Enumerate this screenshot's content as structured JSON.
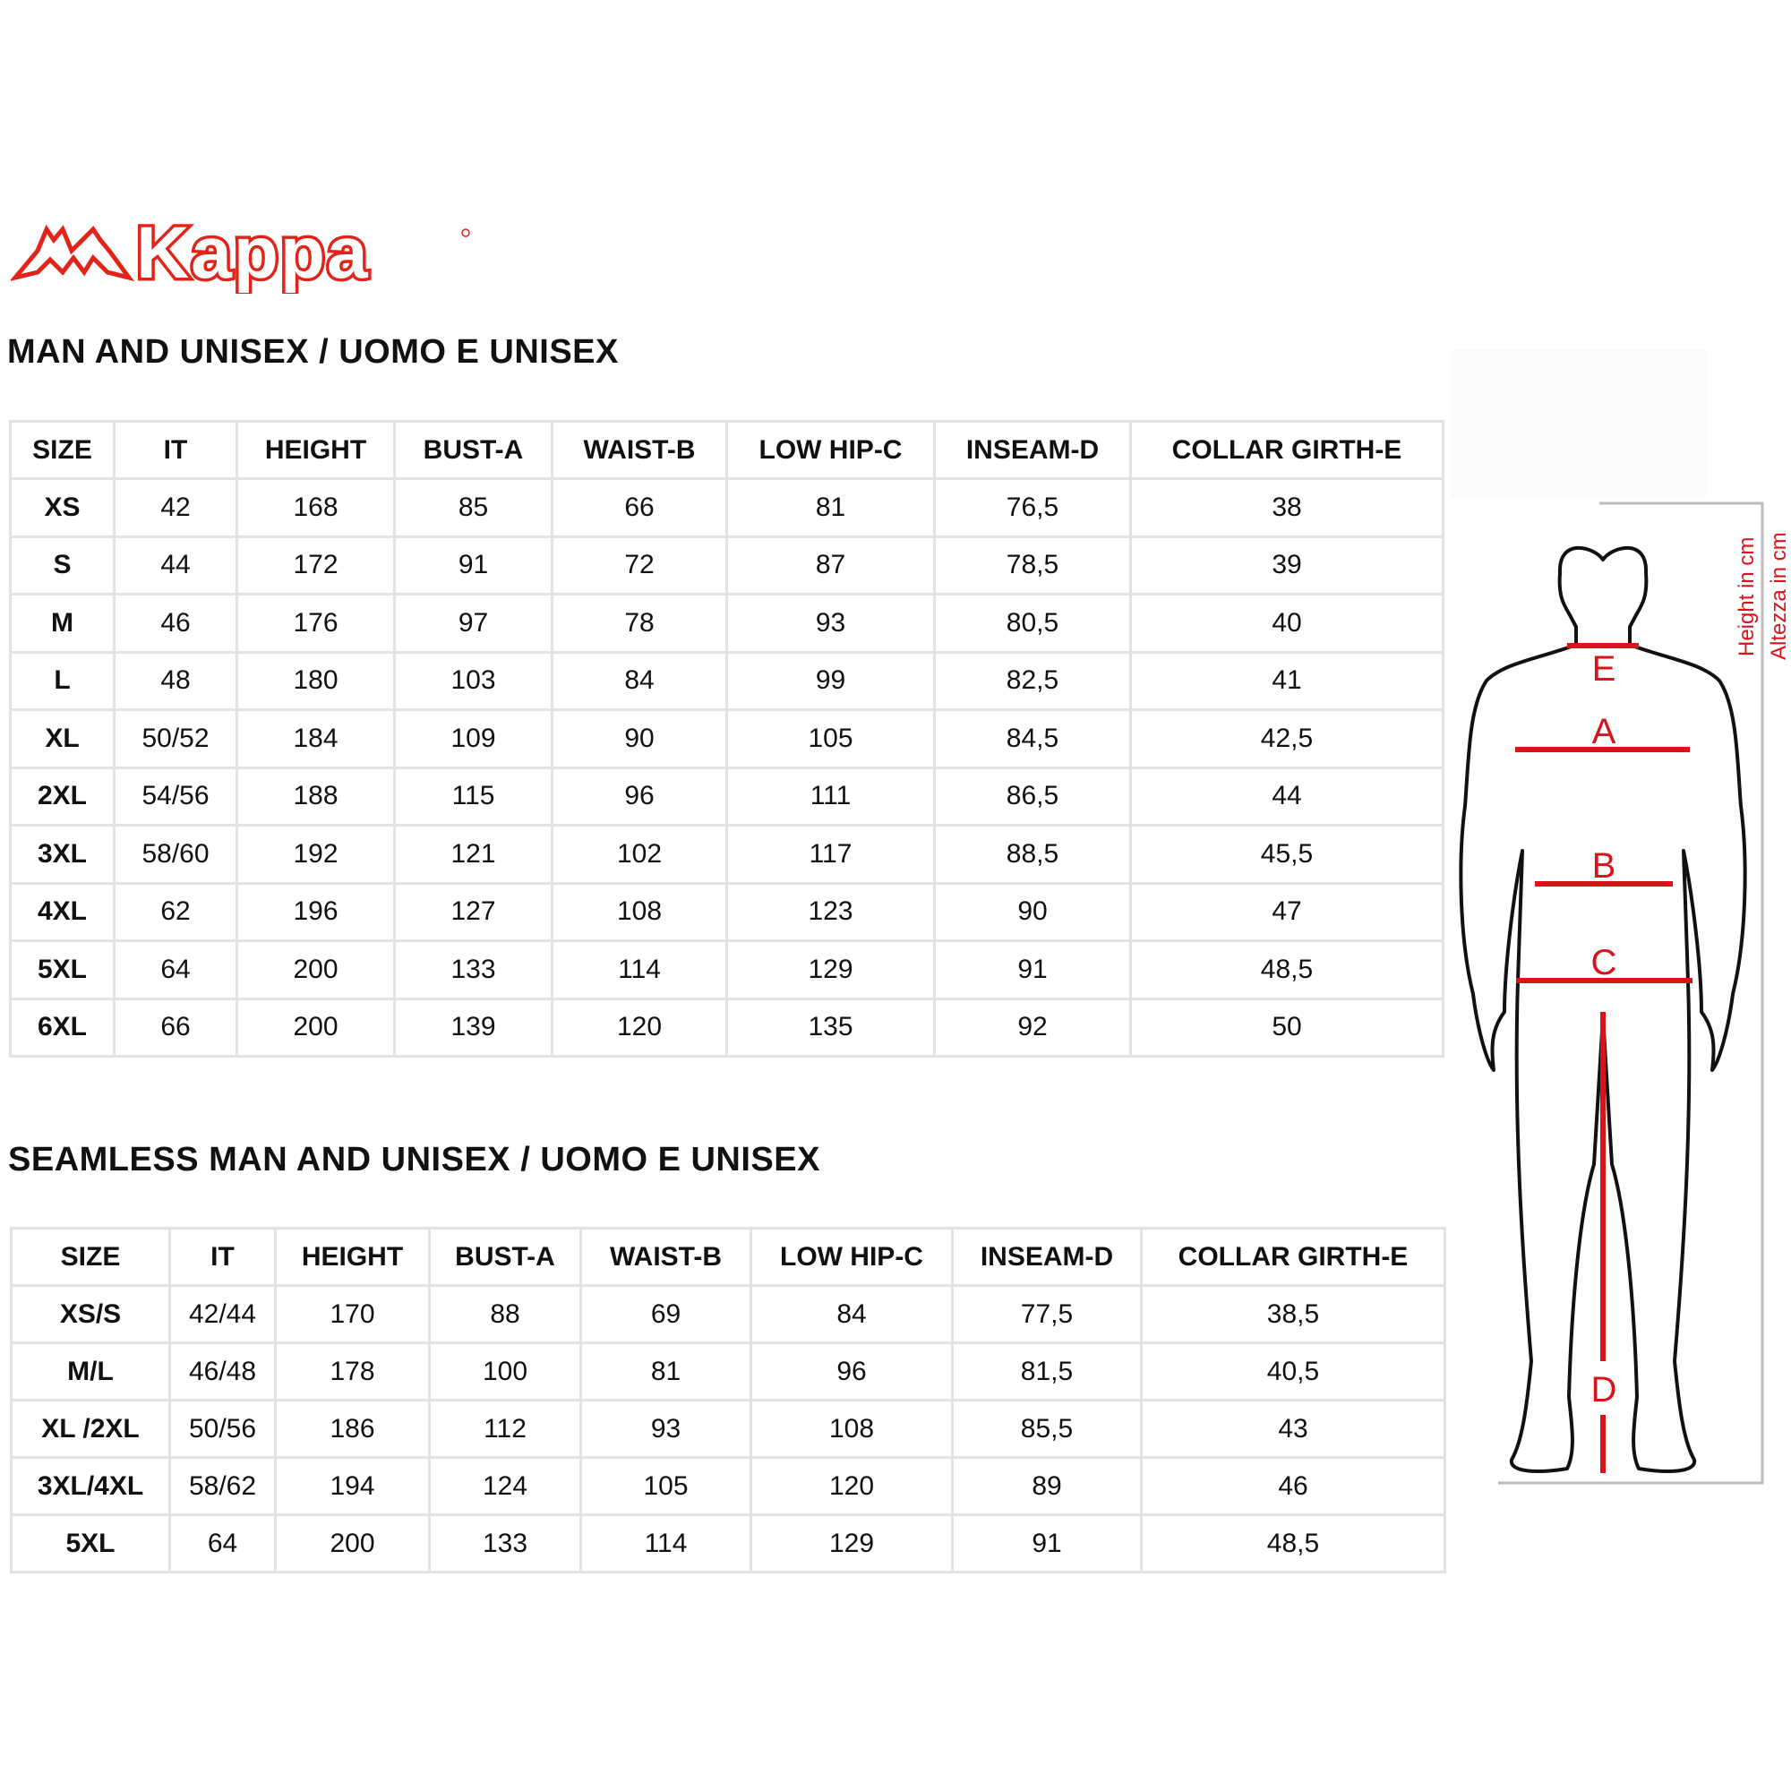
{
  "logo": {
    "text": "Kappa",
    "color": "#e2231a"
  },
  "table1": {
    "title": "MAN AND UNISEX / UOMO E UNISEX",
    "headers": [
      "SIZE",
      "IT",
      "HEIGHT",
      "BUST-A",
      "WAIST-B",
      "LOW HIP-C",
      "INSEAM-D",
      "COLLAR GIRTH-E"
    ],
    "rows": [
      [
        "XS",
        "42",
        "168",
        "85",
        "66",
        "81",
        "76,5",
        "38"
      ],
      [
        "S",
        "44",
        "172",
        "91",
        "72",
        "87",
        "78,5",
        "39"
      ],
      [
        "M",
        "46",
        "176",
        "97",
        "78",
        "93",
        "80,5",
        "40"
      ],
      [
        "L",
        "48",
        "180",
        "103",
        "84",
        "99",
        "82,5",
        "41"
      ],
      [
        "XL",
        "50/52",
        "184",
        "109",
        "90",
        "105",
        "84,5",
        "42,5"
      ],
      [
        "2XL",
        "54/56",
        "188",
        "115",
        "96",
        "111",
        "86,5",
        "44"
      ],
      [
        "3XL",
        "58/60",
        "192",
        "121",
        "102",
        "117",
        "88,5",
        "45,5"
      ],
      [
        "4XL",
        "62",
        "196",
        "127",
        "108",
        "123",
        "90",
        "47"
      ],
      [
        "5XL",
        "64",
        "200",
        "133",
        "114",
        "129",
        "91",
        "48,5"
      ],
      [
        "6XL",
        "66",
        "200",
        "139",
        "120",
        "135",
        "92",
        "50"
      ]
    ]
  },
  "table2": {
    "title": "SEAMLESS MAN AND UNISEX / UOMO E UNISEX",
    "headers": [
      "SIZE",
      "IT",
      "HEIGHT",
      "BUST-A",
      "WAIST-B",
      "LOW HIP-C",
      "INSEAM-D",
      "COLLAR GIRTH-E"
    ],
    "rows": [
      [
        "XS/S",
        "42/44",
        "170",
        "88",
        "69",
        "84",
        "77,5",
        "38,5"
      ],
      [
        "M/L",
        "46/48",
        "178",
        "100",
        "81",
        "96",
        "81,5",
        "40,5"
      ],
      [
        "XL /2XL",
        "50/56",
        "186",
        "112",
        "93",
        "108",
        "85,5",
        "43"
      ],
      [
        "3XL/4XL",
        "58/62",
        "194",
        "124",
        "105",
        "120",
        "89",
        "46"
      ],
      [
        "5XL",
        "64",
        "200",
        "133",
        "114",
        "129",
        "91",
        "48,5"
      ]
    ]
  },
  "figure": {
    "labels": {
      "a": "A",
      "b": "B",
      "c": "C",
      "d": "D",
      "e": "E"
    },
    "height_label_en": "Height in cm",
    "height_label_it": "Altezza in cm",
    "accent_color": "#d7141a"
  }
}
